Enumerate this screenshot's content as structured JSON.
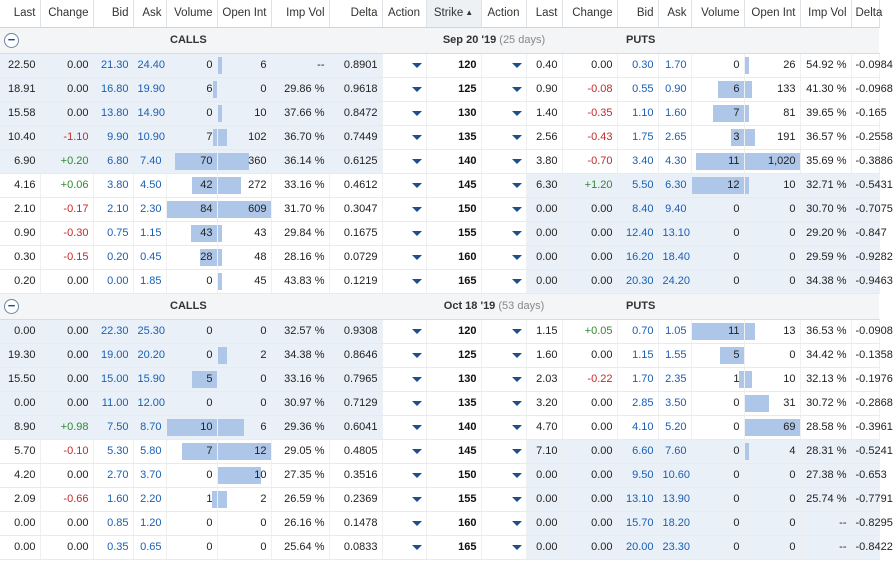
{
  "headers": {
    "calls": [
      "Last",
      "Change",
      "Bid",
      "Ask",
      "Volume",
      "Open Int",
      "Imp Vol",
      "Delta",
      "Action"
    ],
    "strike": "Strike",
    "puts": [
      "Action",
      "Last",
      "Change",
      "Bid",
      "Ask",
      "Volume",
      "Open Int",
      "Imp Vol",
      "Delta"
    ]
  },
  "icons": {
    "sort": "sort-ascending-icon",
    "collapse": "collapse-minus-icon",
    "action": "caret-down-icon"
  },
  "groups": [
    {
      "calls_label": "CALLS",
      "puts_label": "PUTS",
      "expiry": "Sep 20 '19",
      "days": "(25 days)",
      "rows": [
        {
          "strike": "120",
          "itm_call": true,
          "itm_put": false,
          "call": {
            "last": "22.50",
            "change": "0.00",
            "bid": "21.30",
            "ask": "24.40",
            "vol": "0",
            "oi": "6",
            "iv": "--",
            "delta": "0.8901"
          },
          "put": {
            "last": "0.40",
            "change": "0.00",
            "bid": "0.30",
            "ask": "1.70",
            "vol": "0",
            "oi": "26",
            "iv": "54.92 %",
            "delta": "-0.0984"
          }
        },
        {
          "strike": "125",
          "itm_call": true,
          "itm_put": false,
          "call": {
            "last": "18.91",
            "change": "0.00",
            "bid": "16.80",
            "ask": "19.90",
            "vol": "6",
            "oi": "0",
            "iv": "29.86 %",
            "delta": "0.9618"
          },
          "put": {
            "last": "0.90",
            "change": "-0.08",
            "bid": "0.55",
            "ask": "0.90",
            "vol": "6",
            "oi": "133",
            "iv": "41.30 %",
            "delta": "-0.0968"
          }
        },
        {
          "strike": "130",
          "itm_call": true,
          "itm_put": false,
          "call": {
            "last": "15.58",
            "change": "0.00",
            "bid": "13.80",
            "ask": "14.90",
            "vol": "0",
            "oi": "10",
            "iv": "37.66 %",
            "delta": "0.8472"
          },
          "put": {
            "last": "1.40",
            "change": "-0.35",
            "bid": "1.10",
            "ask": "1.60",
            "vol": "7",
            "oi": "81",
            "iv": "39.65 %",
            "delta": "-0.165"
          }
        },
        {
          "strike": "135",
          "itm_call": true,
          "itm_put": false,
          "call": {
            "last": "10.40",
            "change": "-1.10",
            "bid": "9.90",
            "ask": "10.90",
            "vol": "7",
            "oi": "102",
            "iv": "36.70 %",
            "delta": "0.7449"
          },
          "put": {
            "last": "2.56",
            "change": "-0.43",
            "bid": "1.75",
            "ask": "2.65",
            "vol": "3",
            "oi": "191",
            "iv": "36.57 %",
            "delta": "-0.2558"
          }
        },
        {
          "strike": "140",
          "itm_call": true,
          "itm_put": false,
          "call": {
            "last": "6.90",
            "change": "+0.20",
            "bid": "6.80",
            "ask": "7.40",
            "vol": "70",
            "oi": "360",
            "iv": "36.14 %",
            "delta": "0.6125"
          },
          "put": {
            "last": "3.80",
            "change": "-0.70",
            "bid": "3.40",
            "ask": "4.30",
            "vol": "11",
            "oi": "1,020",
            "iv": "35.69 %",
            "delta": "-0.3886"
          }
        },
        {
          "strike": "145",
          "itm_call": false,
          "itm_put": true,
          "call": {
            "last": "4.16",
            "change": "+0.06",
            "bid": "3.80",
            "ask": "4.50",
            "vol": "42",
            "oi": "272",
            "iv": "33.16 %",
            "delta": "0.4612"
          },
          "put": {
            "last": "6.30",
            "change": "+1.20",
            "bid": "5.50",
            "ask": "6.30",
            "vol": "12",
            "oi": "10",
            "iv": "32.71 %",
            "delta": "-0.5431"
          }
        },
        {
          "strike": "150",
          "itm_call": false,
          "itm_put": true,
          "call": {
            "last": "2.10",
            "change": "-0.17",
            "bid": "2.10",
            "ask": "2.30",
            "vol": "84",
            "oi": "609",
            "iv": "31.70 %",
            "delta": "0.3047"
          },
          "put": {
            "last": "0.00",
            "change": "0.00",
            "bid": "8.40",
            "ask": "9.40",
            "vol": "0",
            "oi": "0",
            "iv": "30.70 %",
            "delta": "-0.7075"
          }
        },
        {
          "strike": "155",
          "itm_call": false,
          "itm_put": true,
          "call": {
            "last": "0.90",
            "change": "-0.30",
            "bid": "0.75",
            "ask": "1.15",
            "vol": "43",
            "oi": "43",
            "iv": "29.84 %",
            "delta": "0.1675"
          },
          "put": {
            "last": "0.00",
            "change": "0.00",
            "bid": "12.40",
            "ask": "13.10",
            "vol": "0",
            "oi": "0",
            "iv": "29.20 %",
            "delta": "-0.847"
          }
        },
        {
          "strike": "160",
          "itm_call": false,
          "itm_put": true,
          "call": {
            "last": "0.30",
            "change": "-0.15",
            "bid": "0.20",
            "ask": "0.45",
            "vol": "28",
            "oi": "48",
            "iv": "28.16 %",
            "delta": "0.0729"
          },
          "put": {
            "last": "0.00",
            "change": "0.00",
            "bid": "16.20",
            "ask": "18.40",
            "vol": "0",
            "oi": "0",
            "iv": "29.59 %",
            "delta": "-0.9282"
          }
        },
        {
          "strike": "165",
          "itm_call": false,
          "itm_put": true,
          "call": {
            "last": "0.20",
            "change": "0.00",
            "bid": "0.00",
            "ask": "1.85",
            "vol": "0",
            "oi": "45",
            "iv": "43.83 %",
            "delta": "0.1219"
          },
          "put": {
            "last": "0.00",
            "change": "0.00",
            "bid": "20.30",
            "ask": "24.20",
            "vol": "0",
            "oi": "0",
            "iv": "34.38 %",
            "delta": "-0.9463"
          }
        }
      ]
    },
    {
      "calls_label": "CALLS",
      "puts_label": "PUTS",
      "expiry": "Oct 18 '19",
      "days": "(53 days)",
      "rows": [
        {
          "strike": "120",
          "itm_call": true,
          "itm_put": false,
          "call": {
            "last": "0.00",
            "change": "0.00",
            "bid": "22.30",
            "ask": "25.30",
            "vol": "0",
            "oi": "0",
            "iv": "32.57 %",
            "delta": "0.9308"
          },
          "put": {
            "last": "1.15",
            "change": "+0.05",
            "bid": "0.70",
            "ask": "1.05",
            "vol": "11",
            "oi": "13",
            "iv": "36.53 %",
            "delta": "-0.0908"
          }
        },
        {
          "strike": "125",
          "itm_call": true,
          "itm_put": false,
          "call": {
            "last": "19.30",
            "change": "0.00",
            "bid": "19.00",
            "ask": "20.20",
            "vol": "0",
            "oi": "2",
            "iv": "34.38 %",
            "delta": "0.8646"
          },
          "put": {
            "last": "1.60",
            "change": "0.00",
            "bid": "1.15",
            "ask": "1.55",
            "vol": "5",
            "oi": "0",
            "iv": "34.42 %",
            "delta": "-0.1358"
          }
        },
        {
          "strike": "130",
          "itm_call": true,
          "itm_put": false,
          "call": {
            "last": "15.50",
            "change": "0.00",
            "bid": "15.00",
            "ask": "15.90",
            "vol": "5",
            "oi": "0",
            "iv": "33.16 %",
            "delta": "0.7965"
          },
          "put": {
            "last": "2.03",
            "change": "-0.22",
            "bid": "1.70",
            "ask": "2.35",
            "vol": "1",
            "oi": "10",
            "iv": "32.13 %",
            "delta": "-0.1976"
          }
        },
        {
          "strike": "135",
          "itm_call": true,
          "itm_put": false,
          "call": {
            "last": "0.00",
            "change": "0.00",
            "bid": "11.00",
            "ask": "12.00",
            "vol": "0",
            "oi": "0",
            "iv": "30.97 %",
            "delta": "0.7129"
          },
          "put": {
            "last": "3.20",
            "change": "0.00",
            "bid": "2.85",
            "ask": "3.50",
            "vol": "0",
            "oi": "31",
            "iv": "30.72 %",
            "delta": "-0.2868"
          }
        },
        {
          "strike": "140",
          "itm_call": true,
          "itm_put": false,
          "call": {
            "last": "8.90",
            "change": "+0.98",
            "bid": "7.50",
            "ask": "8.70",
            "vol": "10",
            "oi": "6",
            "iv": "29.36 %",
            "delta": "0.6041"
          },
          "put": {
            "last": "4.70",
            "change": "0.00",
            "bid": "4.10",
            "ask": "5.20",
            "vol": "0",
            "oi": "69",
            "iv": "28.58 %",
            "delta": "-0.3961"
          }
        },
        {
          "strike": "145",
          "itm_call": false,
          "itm_put": true,
          "call": {
            "last": "5.70",
            "change": "-0.10",
            "bid": "5.30",
            "ask": "5.80",
            "vol": "7",
            "oi": "12",
            "iv": "29.05 %",
            "delta": "0.4805"
          },
          "put": {
            "last": "7.10",
            "change": "0.00",
            "bid": "6.60",
            "ask": "7.60",
            "vol": "0",
            "oi": "4",
            "iv": "28.31 %",
            "delta": "-0.5241"
          }
        },
        {
          "strike": "150",
          "itm_call": false,
          "itm_put": true,
          "call": {
            "last": "4.20",
            "change": "0.00",
            "bid": "2.70",
            "ask": "3.70",
            "vol": "0",
            "oi": "10",
            "iv": "27.35 %",
            "delta": "0.3516"
          },
          "put": {
            "last": "0.00",
            "change": "0.00",
            "bid": "9.50",
            "ask": "10.60",
            "vol": "0",
            "oi": "0",
            "iv": "27.38 %",
            "delta": "-0.653"
          }
        },
        {
          "strike": "155",
          "itm_call": false,
          "itm_put": true,
          "call": {
            "last": "2.09",
            "change": "-0.66",
            "bid": "1.60",
            "ask": "2.20",
            "vol": "1",
            "oi": "2",
            "iv": "26.59 %",
            "delta": "0.2369"
          },
          "put": {
            "last": "0.00",
            "change": "0.00",
            "bid": "13.10",
            "ask": "13.90",
            "vol": "0",
            "oi": "0",
            "iv": "25.74 %",
            "delta": "-0.7791"
          }
        },
        {
          "strike": "160",
          "itm_call": false,
          "itm_put": true,
          "call": {
            "last": "0.00",
            "change": "0.00",
            "bid": "0.85",
            "ask": "1.20",
            "vol": "0",
            "oi": "0",
            "iv": "26.16 %",
            "delta": "0.1478"
          },
          "put": {
            "last": "0.00",
            "change": "0.00",
            "bid": "15.70",
            "ask": "18.20",
            "vol": "0",
            "oi": "0",
            "iv": "--",
            "delta": "-0.8295"
          }
        },
        {
          "strike": "165",
          "itm_call": false,
          "itm_put": true,
          "call": {
            "last": "0.00",
            "change": "0.00",
            "bid": "0.35",
            "ask": "0.65",
            "vol": "0",
            "oi": "0",
            "iv": "25.64 %",
            "delta": "0.0833"
          },
          "put": {
            "last": "0.00",
            "change": "0.00",
            "bid": "20.00",
            "ask": "23.30",
            "vol": "0",
            "oi": "0",
            "iv": "--",
            "delta": "-0.8422"
          }
        }
      ]
    }
  ]
}
